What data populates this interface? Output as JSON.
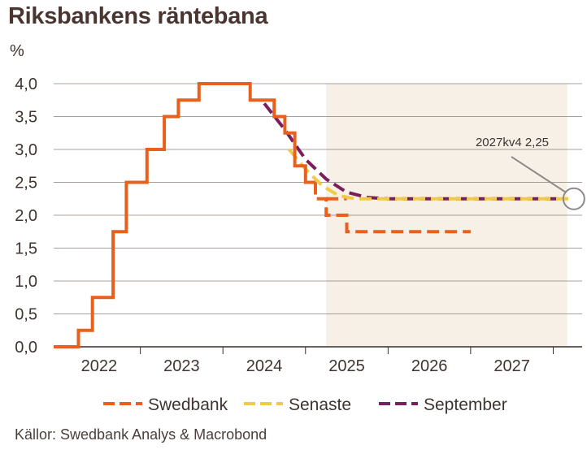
{
  "title": "Riksbankens räntebana",
  "unit": "%",
  "source": "Källor: Swedbank Analys & Macrobond",
  "chart_data": {
    "type": "line",
    "title": "Riksbankens räntebana",
    "ylabel": "%",
    "ylim": [
      0,
      4
    ],
    "xlim": [
      2021.45,
      2027.85
    ],
    "forecast_start": 2024.75,
    "forecast_end": 2027.67,
    "yticks": [
      "0,0",
      "0,5",
      "1,0",
      "1,5",
      "2,0",
      "2,5",
      "3,0",
      "3,5",
      "4,0"
    ],
    "xticks": [
      {
        "label": "2022",
        "x": 2022.0
      },
      {
        "label": "2023",
        "x": 2023.0
      },
      {
        "label": "2024",
        "x": 2024.0
      },
      {
        "label": "2025",
        "x": 2025.0
      },
      {
        "label": "2026",
        "x": 2026.0
      },
      {
        "label": "2027",
        "x": 2027.0
      }
    ],
    "annotation": {
      "text": "2027kv4 2,25",
      "x": 2027.75,
      "y": 2.25
    },
    "series": [
      {
        "name": "Swedbank",
        "color": "#e8611c",
        "style": "solid-step",
        "points": [
          [
            2021.45,
            0.0
          ],
          [
            2021.75,
            0.0
          ],
          [
            2021.75,
            0.25
          ],
          [
            2021.92,
            0.25
          ],
          [
            2021.92,
            0.75
          ],
          [
            2022.17,
            0.75
          ],
          [
            2022.17,
            1.75
          ],
          [
            2022.33,
            1.75
          ],
          [
            2022.33,
            2.5
          ],
          [
            2022.58,
            2.5
          ],
          [
            2022.58,
            3.0
          ],
          [
            2022.79,
            3.0
          ],
          [
            2022.79,
            3.5
          ],
          [
            2022.96,
            3.5
          ],
          [
            2022.96,
            3.75
          ],
          [
            2023.21,
            3.75
          ],
          [
            2023.21,
            4.0
          ],
          [
            2023.83,
            4.0
          ],
          [
            2023.83,
            3.75
          ],
          [
            2024.12,
            3.75
          ],
          [
            2024.12,
            3.5
          ],
          [
            2024.25,
            3.5
          ],
          [
            2024.25,
            3.25
          ],
          [
            2024.37,
            3.25
          ],
          [
            2024.37,
            2.75
          ],
          [
            2024.5,
            2.75
          ],
          [
            2024.5,
            2.5
          ],
          [
            2024.62,
            2.5
          ]
        ]
      },
      {
        "name": "Swedbank",
        "color": "#e8611c",
        "style": "dashed-step",
        "points": [
          [
            2024.62,
            2.5
          ],
          [
            2024.62,
            2.25
          ],
          [
            2024.75,
            2.25
          ],
          [
            2024.75,
            2.0
          ],
          [
            2025.0,
            2.0
          ],
          [
            2025.0,
            1.75
          ],
          [
            2026.5,
            1.75
          ]
        ]
      },
      {
        "name": "Senaste",
        "color": "#f1c94a",
        "style": "dashed",
        "points": [
          [
            2024.3,
            3.0
          ],
          [
            2024.5,
            2.7
          ],
          [
            2024.7,
            2.45
          ],
          [
            2024.9,
            2.3
          ],
          [
            2025.1,
            2.25
          ],
          [
            2025.5,
            2.25
          ],
          [
            2027.75,
            2.25
          ]
        ]
      },
      {
        "name": "September",
        "color": "#7a1f5c",
        "style": "dashed",
        "points": [
          [
            2024.0,
            3.7
          ],
          [
            2024.25,
            3.3
          ],
          [
            2024.5,
            2.85
          ],
          [
            2024.75,
            2.55
          ],
          [
            2025.0,
            2.35
          ],
          [
            2025.25,
            2.27
          ],
          [
            2025.5,
            2.25
          ],
          [
            2027.55,
            2.25
          ]
        ]
      },
      {
        "name": "Swedbank",
        "color": "#e8611c",
        "style": "dashed",
        "points": [
          [
            2024.75,
            2.25
          ],
          [
            2025.0,
            2.25
          ]
        ]
      }
    ],
    "legend": [
      "Swedbank",
      "Senaste",
      "September"
    ]
  }
}
